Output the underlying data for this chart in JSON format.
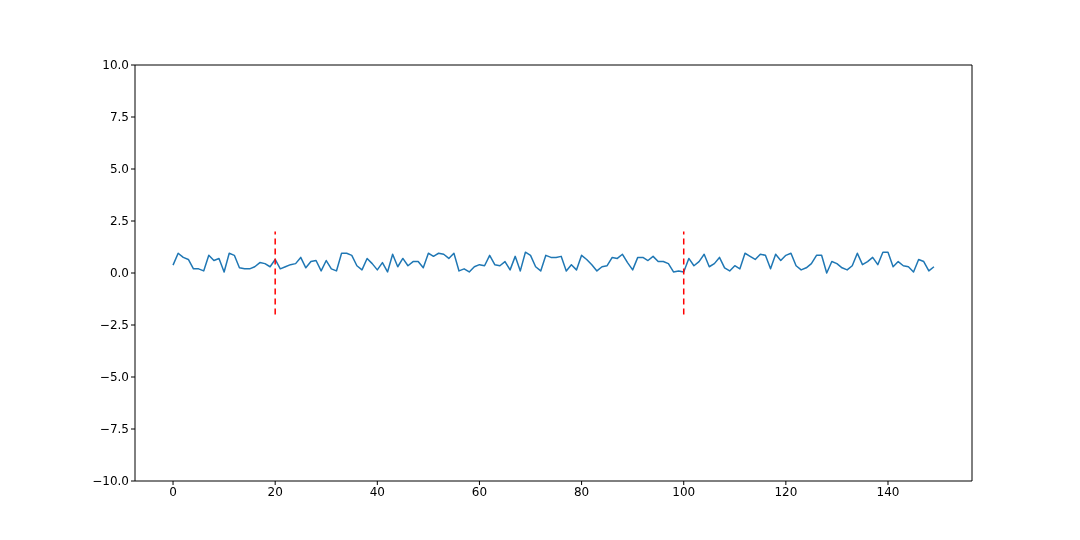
{
  "chart_data": {
    "type": "line",
    "xlim": [
      -7.45,
      156.45
    ],
    "xticks": [
      0,
      20,
      40,
      60,
      80,
      100,
      120,
      140
    ],
    "ylim": [
      -10,
      10
    ],
    "yticks": [
      {
        "value": -10,
        "label": "−10.0"
      },
      {
        "value": -7.5,
        "label": "−7.5"
      },
      {
        "value": -5,
        "label": "−5.0"
      },
      {
        "value": -2.5,
        "label": "−2.5"
      },
      {
        "value": 0,
        "label": "0.0"
      },
      {
        "value": 2.5,
        "label": "2.5"
      },
      {
        "value": 5,
        "label": "5.0"
      },
      {
        "value": 7.5,
        "label": "7.5"
      },
      {
        "value": 10,
        "label": "10.0"
      }
    ],
    "grid": false,
    "series": [
      {
        "color": "#1f77b4",
        "line_style": "solid",
        "x": [
          0,
          1,
          2,
          3,
          4,
          5,
          6,
          7,
          8,
          9,
          10,
          11,
          12,
          13,
          14,
          15,
          16,
          17,
          18,
          19,
          20,
          21,
          22,
          23,
          24,
          25,
          26,
          27,
          28,
          29,
          30,
          31,
          32,
          33,
          34,
          35,
          36,
          37,
          38,
          39,
          40,
          41,
          42,
          43,
          44,
          45,
          46,
          47,
          48,
          49,
          50,
          51,
          52,
          53,
          54,
          55,
          56,
          57,
          58,
          59,
          60,
          61,
          62,
          63,
          64,
          65,
          66,
          67,
          68,
          69,
          70,
          71,
          72,
          73,
          74,
          75,
          76,
          77,
          78,
          79,
          80,
          81,
          82,
          83,
          84,
          85,
          86,
          87,
          88,
          89,
          90,
          91,
          92,
          93,
          94,
          95,
          96,
          97,
          98,
          99,
          100,
          101,
          102,
          103,
          104,
          105,
          106,
          107,
          108,
          109,
          110,
          111,
          112,
          113,
          114,
          115,
          116,
          117,
          118,
          119,
          120,
          121,
          122,
          123,
          124,
          125,
          126,
          127,
          128,
          129,
          130,
          131,
          132,
          133,
          134,
          135,
          136,
          137,
          138,
          139,
          140,
          141,
          142,
          143,
          144,
          145,
          146,
          147,
          148,
          149
        ],
        "values": [
          0.38,
          0.95,
          0.75,
          0.65,
          0.2,
          0.2,
          0.1,
          0.85,
          0.6,
          0.7,
          0.05,
          0.95,
          0.85,
          0.25,
          0.2,
          0.2,
          0.3,
          0.5,
          0.45,
          0.3,
          0.65,
          0.2,
          0.3,
          0.4,
          0.45,
          0.75,
          0.25,
          0.55,
          0.6,
          0.1,
          0.6,
          0.2,
          0.1,
          0.95,
          0.95,
          0.85,
          0.35,
          0.15,
          0.7,
          0.45,
          0.15,
          0.5,
          0.05,
          0.9,
          0.3,
          0.7,
          0.35,
          0.55,
          0.55,
          0.25,
          0.95,
          0.8,
          0.95,
          0.9,
          0.7,
          0.95,
          0.1,
          0.2,
          0.05,
          0.3,
          0.4,
          0.35,
          0.85,
          0.4,
          0.35,
          0.55,
          0.15,
          0.8,
          0.1,
          1.0,
          0.85,
          0.3,
          0.1,
          0.85,
          0.75,
          0.75,
          0.8,
          0.1,
          0.4,
          0.15,
          0.85,
          0.65,
          0.4,
          0.1,
          0.3,
          0.35,
          0.75,
          0.7,
          0.9,
          0.5,
          0.15,
          0.75,
          0.75,
          0.6,
          0.8,
          0.55,
          0.55,
          0.45,
          0.05,
          0.1,
          0.05,
          0.7,
          0.35,
          0.55,
          0.9,
          0.3,
          0.45,
          0.75,
          0.25,
          0.1,
          0.35,
          0.2,
          0.95,
          0.8,
          0.65,
          0.9,
          0.85,
          0.2,
          0.9,
          0.6,
          0.85,
          0.95,
          0.35,
          0.15,
          0.25,
          0.45,
          0.85,
          0.85,
          0.0,
          0.55,
          0.45,
          0.25,
          0.15,
          0.35,
          0.95,
          0.4,
          0.55,
          0.75,
          0.4,
          1.0,
          1.0,
          0.3,
          0.55,
          0.35,
          0.3,
          0.05,
          0.65,
          0.55,
          0.1,
          0.3
        ]
      },
      {
        "type": "line",
        "color": "#ff0000",
        "line_style": "dashed",
        "x": [
          20,
          20
        ],
        "values": [
          -2,
          2
        ]
      },
      {
        "type": "line",
        "color": "#ff0000",
        "line_style": "dashed",
        "x": [
          100,
          100
        ],
        "values": [
          -2,
          2
        ]
      }
    ]
  }
}
